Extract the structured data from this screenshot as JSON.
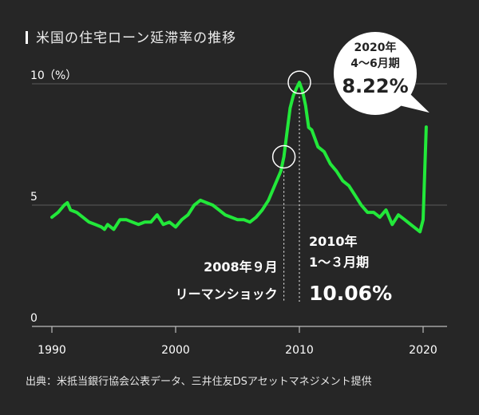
{
  "chart_data": {
    "type": "line",
    "title": "米国の住宅ローン延滞率の推移",
    "unit_label": "（%）",
    "source": "出典：米抵当銀行協会公表データ、三井住友DSアセットマネジメント提供",
    "xlim": [
      1990,
      2021
    ],
    "ylim": [
      0,
      10
    ],
    "x_ticks": [
      "1990",
      "2000",
      "2010",
      "2020"
    ],
    "y_ticks": [
      "0",
      "5",
      "10"
    ],
    "grid": true,
    "line_color": "#22e83a",
    "x": [
      1990.0,
      1990.5,
      1991.0,
      1991.25,
      1991.5,
      1992.0,
      1992.5,
      1993.0,
      1993.5,
      1994.0,
      1994.25,
      1994.5,
      1995.0,
      1995.25,
      1995.5,
      1996.0,
      1996.5,
      1997.0,
      1997.5,
      1998.0,
      1998.5,
      1999.0,
      1999.5,
      2000.0,
      2000.5,
      2001.0,
      2001.5,
      2002.0,
      2002.5,
      2003.0,
      2003.5,
      2004.0,
      2004.5,
      2005.0,
      2005.5,
      2006.0,
      2006.5,
      2007.0,
      2007.5,
      2008.0,
      2008.5,
      2008.75,
      2009.0,
      2009.25,
      2009.5,
      2009.75,
      2010.0,
      2010.25,
      2010.5,
      2010.75,
      2011.0,
      2011.5,
      2012.0,
      2012.5,
      2013.0,
      2013.5,
      2014.0,
      2014.5,
      2015.0,
      2015.5,
      2016.0,
      2016.5,
      2017.0,
      2017.5,
      2018.0,
      2018.5,
      2019.0,
      2019.5,
      2019.75,
      2020.0,
      2020.25
    ],
    "y": [
      4.5,
      4.7,
      5.0,
      5.1,
      4.8,
      4.7,
      4.5,
      4.3,
      4.2,
      4.1,
      4.0,
      4.2,
      4.0,
      4.2,
      4.4,
      4.4,
      4.3,
      4.2,
      4.3,
      4.3,
      4.6,
      4.2,
      4.3,
      4.1,
      4.4,
      4.6,
      5.0,
      5.2,
      5.1,
      5.0,
      4.8,
      4.6,
      4.5,
      4.4,
      4.4,
      4.3,
      4.5,
      4.8,
      5.2,
      5.8,
      6.4,
      6.99,
      8.0,
      9.0,
      9.5,
      9.8,
      10.06,
      9.7,
      9.1,
      8.2,
      8.1,
      7.4,
      7.2,
      6.7,
      6.4,
      6.0,
      5.8,
      5.4,
      5.0,
      4.7,
      4.7,
      4.5,
      4.8,
      4.2,
      4.6,
      4.4,
      4.2,
      4.0,
      3.9,
      4.4,
      8.22
    ],
    "annotations": [
      {
        "x": 2008.75,
        "y": 6.99,
        "lines": [
          "2008年９月",
          "リーマンショック"
        ]
      },
      {
        "x": 2010.0,
        "y": 10.06,
        "lines": [
          "2010年",
          "1〜３月期",
          "10.06%"
        ]
      },
      {
        "x": 2020.25,
        "y": 8.22,
        "lines": [
          "2020年",
          "4〜6月期",
          "8.22%"
        ]
      }
    ]
  }
}
